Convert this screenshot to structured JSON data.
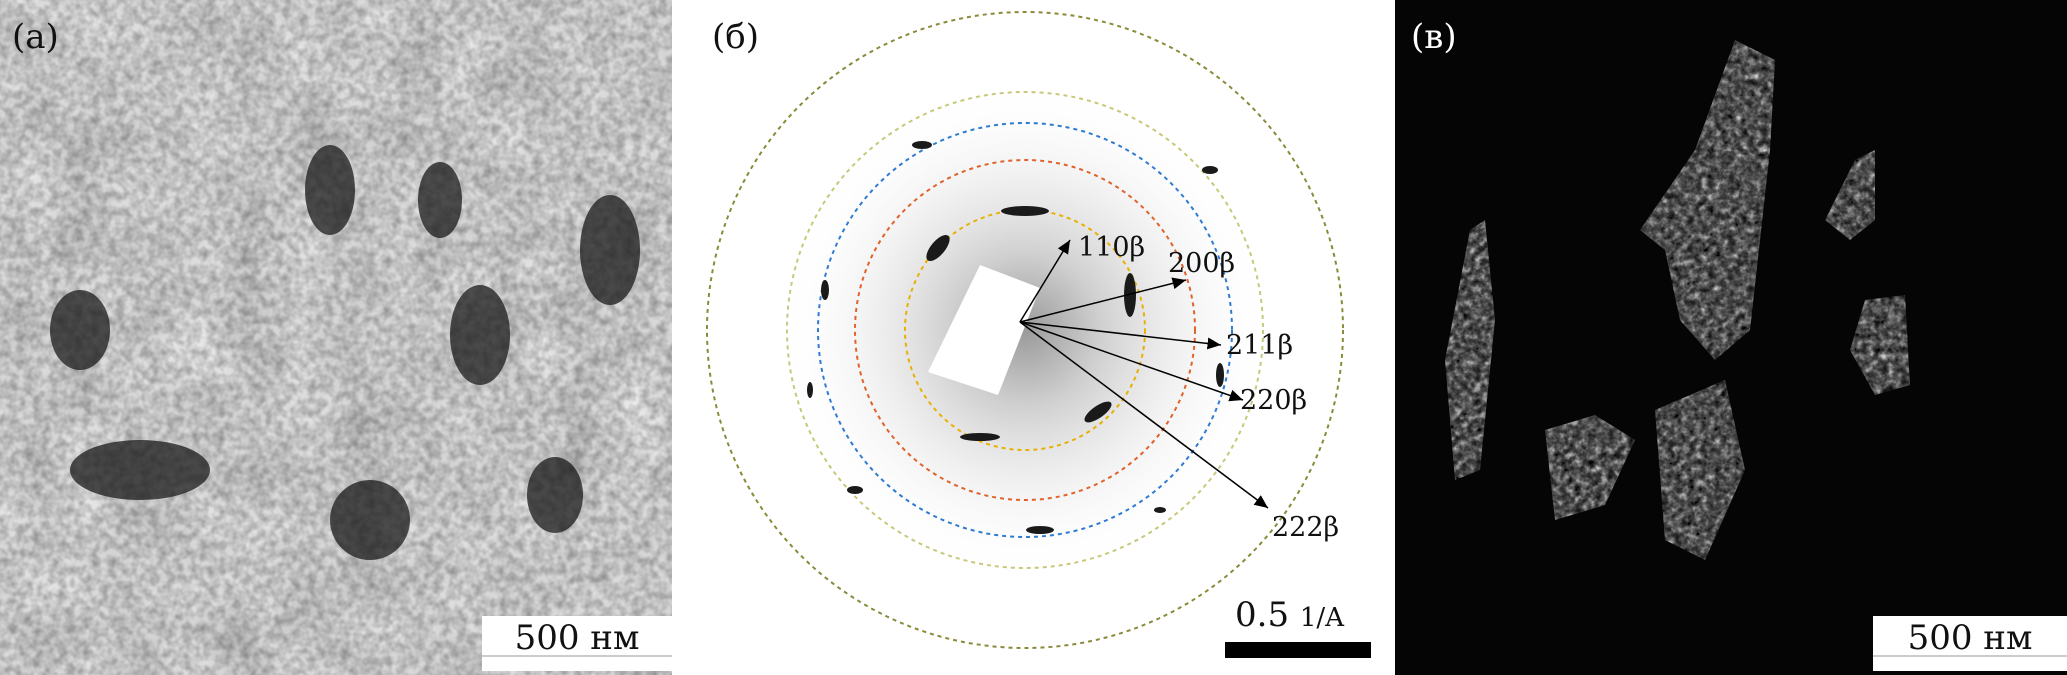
{
  "panels": {
    "a": {
      "label": "(а)",
      "scale_text": "500 нм"
    },
    "b": {
      "label": "(б)",
      "scale_value": "0.5",
      "scale_unit": "1/A",
      "rings": [
        "110β",
        "200β",
        "211β",
        "220β",
        "222β"
      ],
      "ring_colors": [
        "#e8b000",
        "#e0622a",
        "#2f7bd1",
        "#c8c87a",
        "#8a8a3a"
      ]
    },
    "v": {
      "label": "(в)",
      "scale_text": "500 нм"
    }
  }
}
